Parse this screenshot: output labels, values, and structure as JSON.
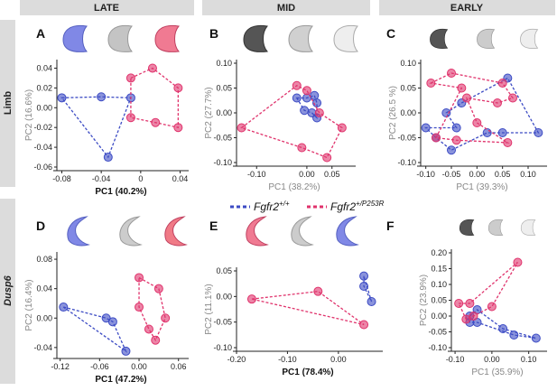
{
  "figure": {
    "columns": [
      "LATE",
      "MID",
      "EARLY"
    ],
    "rows": [
      "Limb",
      "Dusp6"
    ],
    "legend": [
      {
        "label": "Fgfr2",
        "superscript": "+/+",
        "color": "#3c4bc4"
      },
      {
        "label": "Fgfr2",
        "superscript": "+/P253R",
        "color": "#e0336c"
      }
    ]
  },
  "chart_data": [
    {
      "type": "scatter",
      "panel": "A",
      "xlabel": "PC1 (40.2%)",
      "ylabel": "PC2 (16.6%)",
      "xlabel_bold": true,
      "xlim": [
        -0.085,
        0.045
      ],
      "ylim": [
        -0.06,
        0.045
      ],
      "xticks": [
        -0.08,
        -0.04,
        0,
        0.04
      ],
      "yticks": [
        0.04,
        0.02,
        {
          "value": 0,
          "label": "0.00"
        },
        -0.02,
        -0.04,
        -0.06
      ],
      "series": [
        {
          "color": "#3c4bc4",
          "x": [
            -0.08,
            -0.04,
            -0.01,
            -0.033
          ],
          "values": [
            0.01,
            0.011,
            0.01,
            -0.05
          ]
        },
        {
          "color": "#e0336c",
          "x": [
            -0.01,
            0.012,
            0.038,
            0.038,
            0.015,
            -0.01
          ],
          "values": [
            0.03,
            0.04,
            0.02,
            -0.02,
            -0.015,
            -0.01
          ]
        }
      ]
    },
    {
      "type": "scatter",
      "panel": "B",
      "xlabel": "PC1 (38.2%)",
      "ylabel": "PC2 (27.7%)",
      "xlabel_bold": false,
      "xlim": [
        -0.14,
        0.09
      ],
      "ylim": [
        -0.1,
        0.1
      ],
      "xticks": [
        {
          "value": -0.1,
          "label": "-0.10"
        },
        {
          "value": 0,
          "label": "0.00"
        },
        0.05
      ],
      "yticks": [
        {
          "value": 0.1,
          "label": "0.10"
        },
        0.05,
        {
          "value": 0,
          "label": "0.00"
        },
        -0.05,
        {
          "value": -0.1,
          "label": "-0.10"
        }
      ],
      "series": [
        {
          "color": "#3c4bc4",
          "x": [
            -0.02,
            0.0,
            0.015,
            0.02,
            0.02,
            0.01,
            -0.005
          ],
          "values": [
            0.03,
            0.03,
            0.035,
            0.02,
            -0.01,
            0.0,
            0.005
          ]
        },
        {
          "color": "#e0336c",
          "x": [
            -0.13,
            -0.02,
            0.0,
            0.025,
            0.07,
            0.04,
            -0.01
          ],
          "values": [
            -0.03,
            0.055,
            0.045,
            0.0,
            -0.03,
            -0.09,
            -0.07
          ]
        }
      ]
    },
    {
      "type": "scatter",
      "panel": "C",
      "xlabel": "PC1 (39.3%)",
      "ylabel": "PC2 (26.5 %)",
      "xlabel_bold": false,
      "xlim": [
        -0.11,
        0.13
      ],
      "ylim": [
        -0.1,
        0.1
      ],
      "xticks": [
        {
          "value": -0.1,
          "label": "-0.10"
        },
        -0.05,
        {
          "value": 0,
          "label": "0.00"
        },
        0.05,
        {
          "value": 0.1,
          "label": "0.10"
        }
      ],
      "yticks": [
        {
          "value": 0.1,
          "label": "0.10"
        },
        0.05,
        {
          "value": 0,
          "label": "0.00"
        },
        -0.05,
        {
          "value": -0.1,
          "label": "-0.10"
        }
      ],
      "series": [
        {
          "color": "#3c4bc4",
          "x": [
            -0.06,
            -0.03,
            0.06,
            0.12,
            0.05,
            0.02,
            -0.05,
            -0.08,
            -0.1,
            -0.04
          ],
          "values": [
            0.0,
            0.02,
            0.07,
            -0.04,
            -0.04,
            -0.04,
            -0.075,
            -0.05,
            -0.03,
            -0.03
          ]
        },
        {
          "color": "#e0336c",
          "x": [
            -0.09,
            -0.05,
            0.05,
            0.07,
            0.04,
            -0.02,
            0.0,
            0.06,
            -0.04,
            -0.08,
            -0.03
          ],
          "values": [
            0.06,
            0.08,
            0.06,
            0.03,
            0.02,
            0.03,
            -0.02,
            -0.06,
            -0.055,
            -0.05,
            0.05
          ]
        }
      ]
    },
    {
      "type": "scatter",
      "panel": "D",
      "xlabel": "PC1 (47.2%)",
      "ylabel": "PC2 (16.4%)",
      "xlabel_bold": true,
      "xlim": [
        -0.125,
        0.07
      ],
      "ylim": [
        -0.05,
        0.085
      ],
      "xticks": [
        -0.12,
        -0.06,
        {
          "value": 0,
          "label": "0.00"
        },
        0.06
      ],
      "yticks": [
        0.08,
        0.04,
        {
          "value": 0,
          "label": "0.00"
        },
        -0.04
      ],
      "series": [
        {
          "color": "#3c4bc4",
          "x": [
            -0.115,
            -0.05,
            -0.04,
            -0.02
          ],
          "values": [
            0.015,
            0.0,
            -0.005,
            -0.045
          ]
        },
        {
          "color": "#e0336c",
          "x": [
            0.0,
            0.03,
            0.04,
            0.025,
            0.015,
            0.0
          ],
          "values": [
            0.055,
            0.04,
            0.0,
            -0.03,
            -0.015,
            0.015
          ]
        }
      ]
    },
    {
      "type": "scatter",
      "panel": "E",
      "xlabel": "PC1 (78.4%)",
      "ylabel": "PC2 (11.1%)",
      "xlabel_bold": true,
      "xlim": [
        -0.2,
        0.08
      ],
      "ylim": [
        -0.1,
        0.05
      ],
      "xticks": [
        {
          "value": -0.2,
          "label": "-0.20"
        },
        {
          "value": -0.1,
          "label": "-0.10"
        },
        {
          "value": 0,
          "label": "0.00"
        }
      ],
      "yticks": [
        0.05,
        {
          "value": 0,
          "label": "0.00"
        },
        -0.05,
        {
          "value": -0.1,
          "label": "-0.10"
        }
      ],
      "series": [
        {
          "color": "#3c4bc4",
          "x": [
            0.05,
            0.05,
            0.065
          ],
          "values": [
            0.04,
            0.02,
            -0.01
          ]
        },
        {
          "color": "#e0336c",
          "x": [
            -0.17,
            -0.04,
            0.05
          ],
          "values": [
            -0.005,
            0.01,
            -0.055
          ]
        }
      ]
    },
    {
      "type": "scatter",
      "panel": "F",
      "xlabel": "PC1 (35.9%)",
      "ylabel": "PC2 (23.9%)",
      "xlabel_bold": false,
      "xlim": [
        -0.11,
        0.14
      ],
      "ylim": [
        -0.1,
        0.2
      ],
      "xticks": [
        {
          "value": -0.1,
          "label": "-0.10"
        },
        {
          "value": 0,
          "label": "0.00"
        },
        {
          "value": 0.1,
          "label": "0.10"
        }
      ],
      "yticks": [
        {
          "value": 0.2,
          "label": "0.20"
        },
        0.15,
        {
          "value": 0.1,
          "label": "0.10"
        },
        0.05,
        {
          "value": 0,
          "label": "0.00"
        },
        -0.05,
        {
          "value": -0.1,
          "label": "-0.10"
        }
      ],
      "series": [
        {
          "color": "#3c4bc4",
          "x": [
            -0.06,
            -0.04,
            0.03,
            0.12,
            0.06,
            -0.04,
            -0.06
          ],
          "values": [
            0.0,
            0.02,
            -0.04,
            -0.07,
            -0.06,
            -0.02,
            -0.02
          ]
        },
        {
          "color": "#e0336c",
          "x": [
            -0.09,
            -0.06,
            0.07,
            0.0,
            -0.05,
            -0.07
          ],
          "values": [
            0.04,
            0.04,
            0.17,
            0.03,
            0.0,
            -0.01
          ]
        }
      ]
    }
  ]
}
